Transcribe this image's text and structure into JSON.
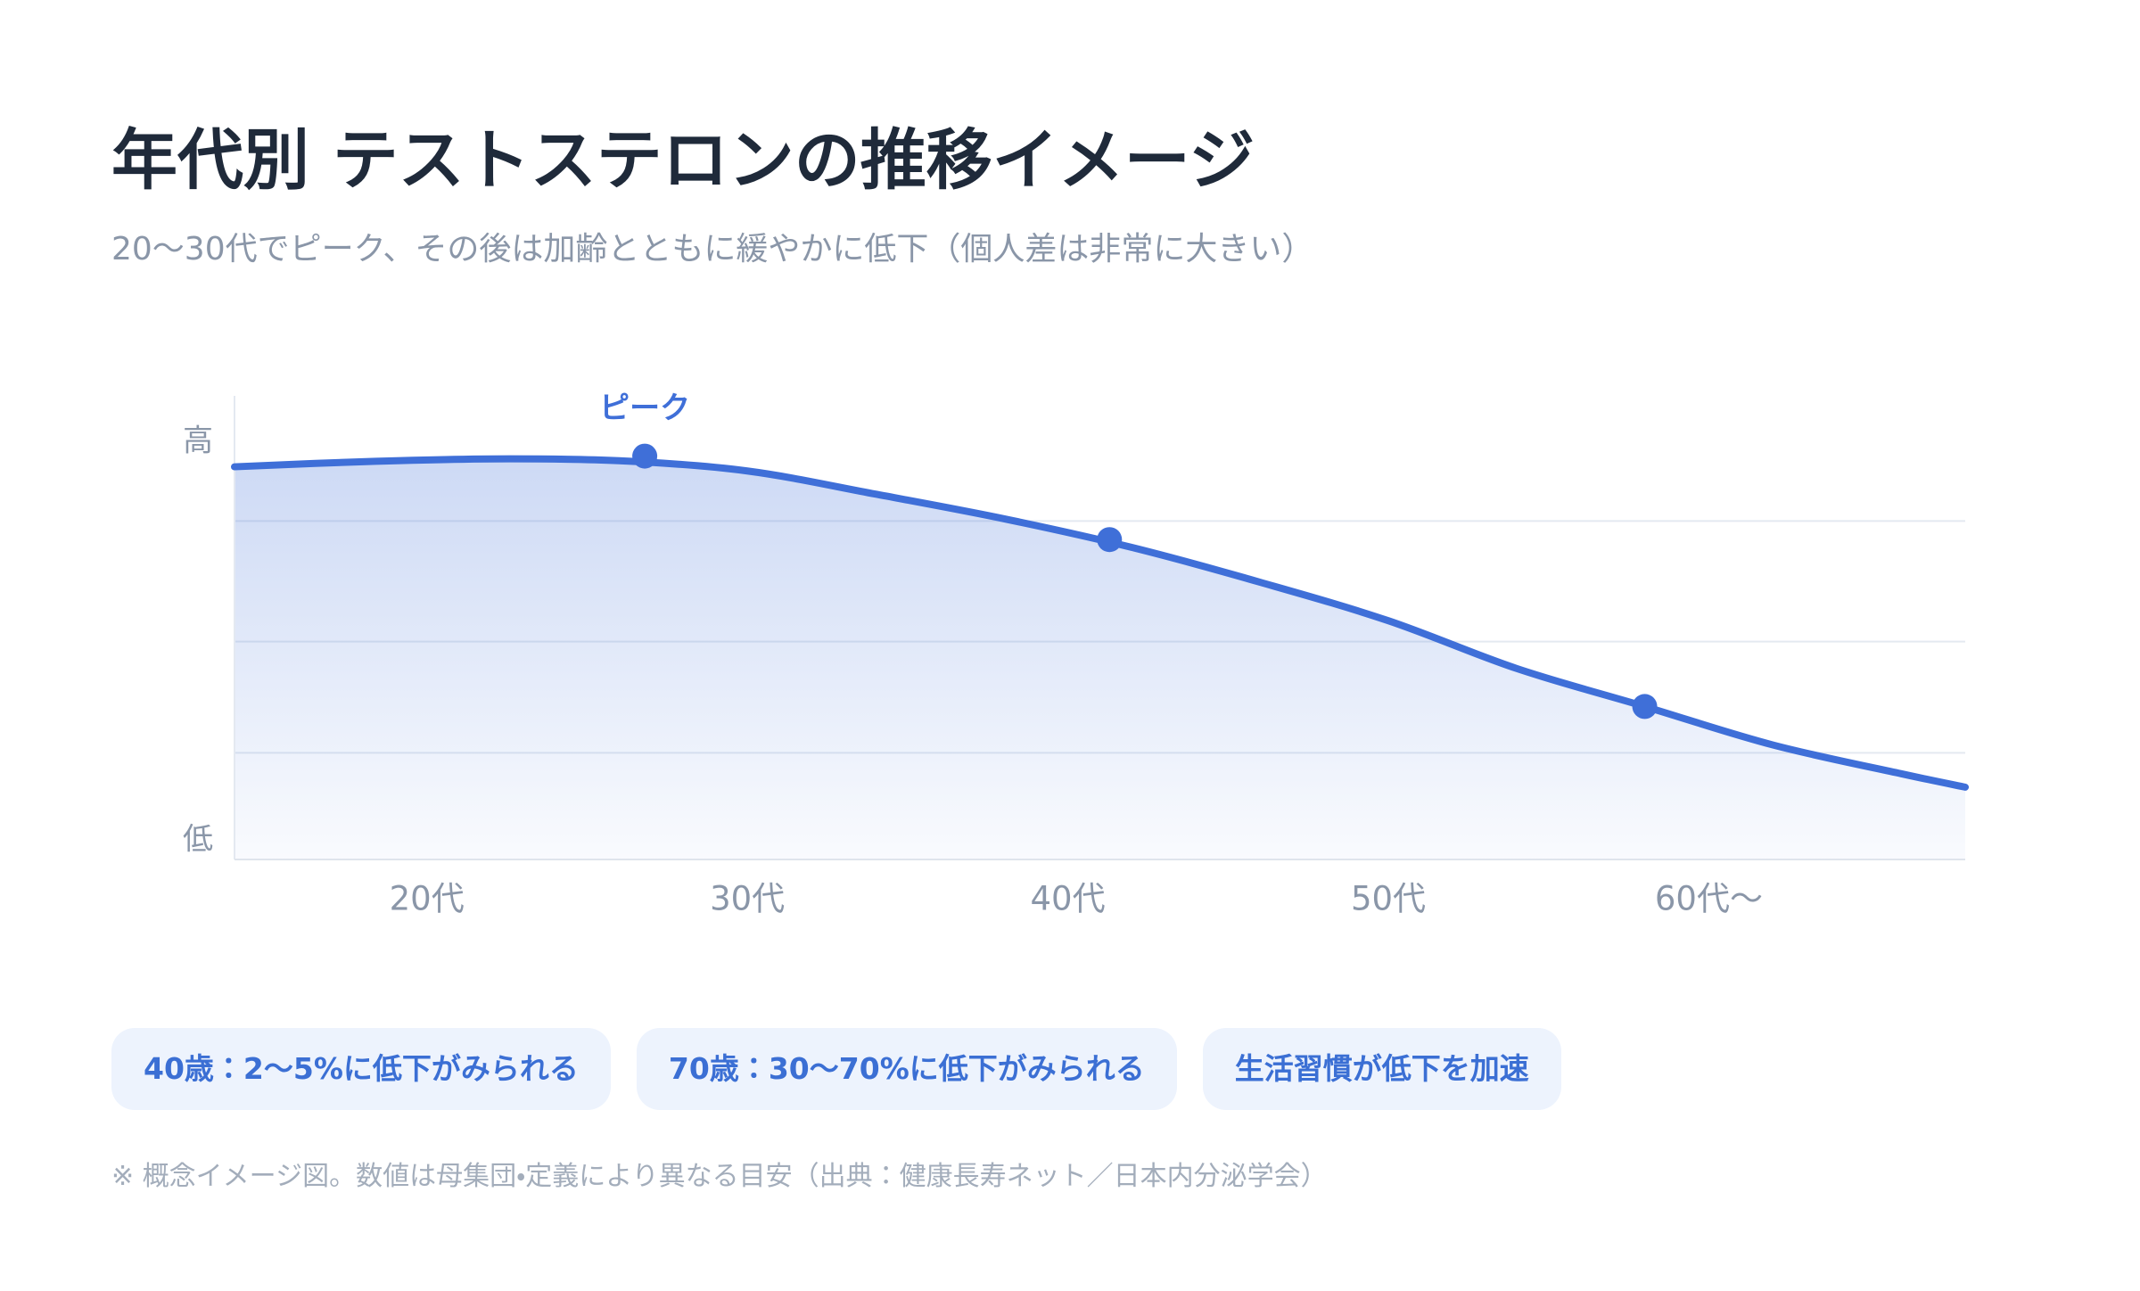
{
  "chart_data": {
    "type": "line",
    "title": "年代別 テストステロンの推移イメージ",
    "subtitle": "20〜30代でピーク、その後は加齢とともに緩やかに低下（個人差は非常に大きい）",
    "x": [
      14,
      18,
      22,
      26,
      30,
      34,
      38,
      42,
      46,
      50,
      54,
      58,
      62,
      66,
      68
    ],
    "values": [
      84.7,
      85.8,
      86.4,
      86.0,
      83.8,
      78.8,
      73.5,
      67.3,
      59.8,
      51.5,
      41.2,
      33.0,
      24.7,
      18.5,
      15.6
    ],
    "color": "#3f6fd8",
    "markers": {
      "x": [
        26.8,
        41.3,
        58
      ],
      "values": [
        87,
        69,
        33
      ]
    },
    "peak_label": "ピーク",
    "xlim": [
      14,
      68
    ],
    "xticks": [
      {
        "value": 20,
        "label": "20代"
      },
      {
        "value": 30,
        "label": "30代"
      },
      {
        "value": 40,
        "label": "40代"
      },
      {
        "value": 50,
        "label": "50代"
      },
      {
        "value": 60,
        "label": "60代〜"
      }
    ],
    "ylim": [
      0,
      100
    ],
    "yticks": [
      {
        "value": 90,
        "label": "高"
      },
      {
        "value": 4,
        "label": "低"
      }
    ],
    "ygrid": [
      73,
      47,
      23
    ],
    "grid": true
  },
  "notes": [
    "40歳：2〜5%に低下がみられる",
    "70歳：30〜70%に低下がみられる",
    "生活習慣が低下を加速"
  ],
  "footnote": "※ 概念イメージ図。数値は母集団・定義により異なる目安（出典：健康長寿ネット／日本内分泌学会）"
}
